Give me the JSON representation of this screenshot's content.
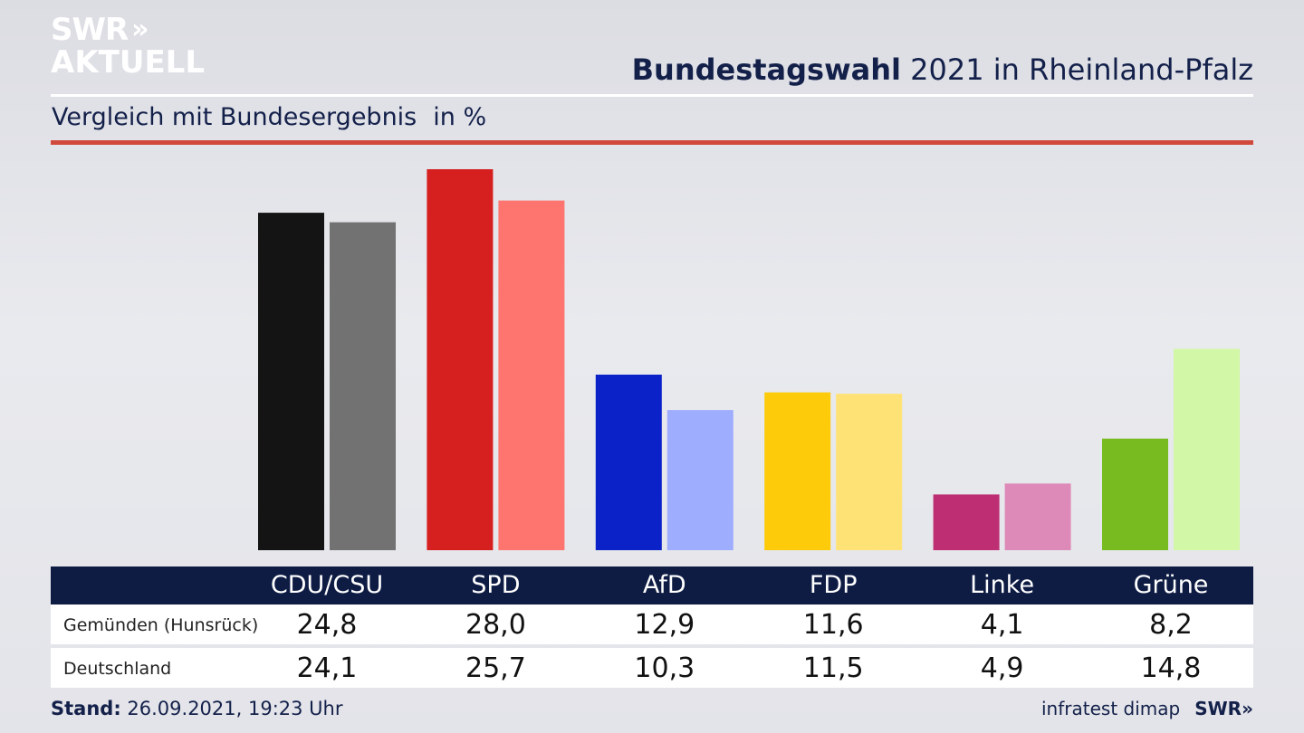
{
  "brand": {
    "line1": "SWR",
    "chevrons": "»",
    "line2": "AKTUELL"
  },
  "header": {
    "title_bold": "Bundestagswahl",
    "title_rest": " 2021 in Rheinland-Pfalz",
    "subtitle": "Vergleich mit Bundesergebnis",
    "unit": "in %"
  },
  "chart_data": {
    "type": "bar",
    "categories": [
      "CDU/CSU",
      "SPD",
      "AfD",
      "FDP",
      "Linke",
      "Grüne"
    ],
    "series": [
      {
        "name": "Gemünden (Hunsrück)",
        "values": [
          24.8,
          28.0,
          12.9,
          11.6,
          4.1,
          8.2
        ],
        "labels": [
          "24,8",
          "28,0",
          "12,9",
          "11,6",
          "4,1",
          "8,2"
        ]
      },
      {
        "name": "Deutschland",
        "values": [
          24.1,
          25.7,
          10.3,
          11.5,
          4.9,
          14.8
        ],
        "labels": [
          "24,1",
          "25,7",
          "10,3",
          "11,5",
          "4,9",
          "14,8"
        ]
      }
    ],
    "colors": {
      "primary": [
        "#141414",
        "#d61f1f",
        "#0a22c8",
        "#fdcb0a",
        "#bd2e72",
        "#77bb21"
      ],
      "secondary": [
        "#737272",
        "#fe746f",
        "#9fadfe",
        "#ffe276",
        "#de8ab9",
        "#d2f7a6"
      ]
    },
    "ylim": [
      0,
      28
    ]
  },
  "footer": {
    "stand_label": "Stand:",
    "stand_value": " 26.09.2021, 19:23 Uhr",
    "source": "infratest dimap",
    "swr": "SWR",
    "swr_chevrons": "»"
  }
}
